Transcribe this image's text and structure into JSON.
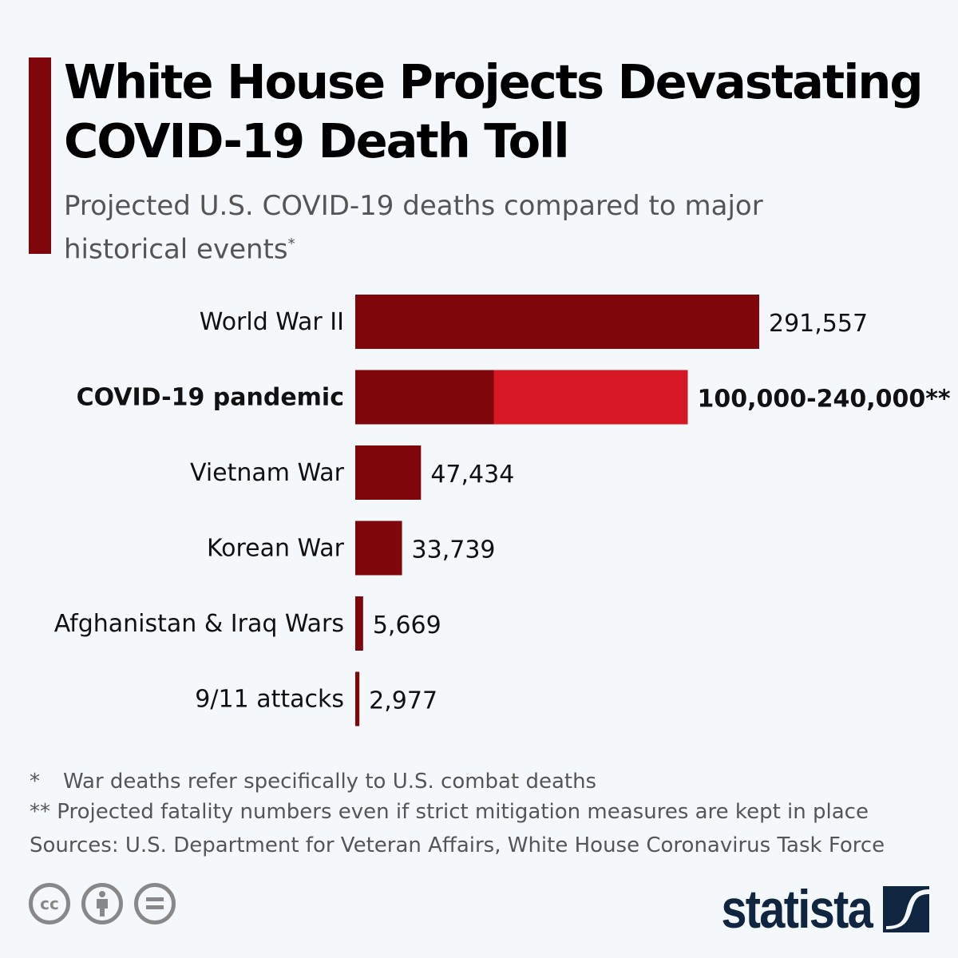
{
  "title": "White House Projects Devastating COVID-19 Death Toll",
  "subtitle": "Projected U.S. COVID-19 deaths compared to major historical events",
  "subtitle_mark": "*",
  "chart_data": {
    "type": "bar",
    "orientation": "horizontal",
    "categories": [
      "World War II",
      "COVID-19 pandemic",
      "Vietnam War",
      "Korean War",
      "Afghanistan & Iraq Wars",
      "9/11 attacks"
    ],
    "values": [
      291557,
      [
        100000,
        240000
      ],
      47434,
      33739,
      5669,
      2977
    ],
    "data_labels": [
      "291,557",
      "100,000-240,000**",
      "47,434",
      "33,739",
      "5,669",
      "2,977"
    ],
    "highlight_category": "COVID-19 pandemic",
    "colors": {
      "bar": "#7f070b",
      "range_upper": "#d51824"
    },
    "grid": false,
    "xlim": [
      0,
      291557
    ]
  },
  "notes": {
    "n1_mark": "*",
    "n1": "War deaths refer specifically to U.S. combat deaths",
    "n2": "** Projected fatality numbers even if strict mitigation measures are kept in place",
    "sources": "Sources: U.S. Department for Veteran Affairs, White House Coronavirus Task Force"
  },
  "footer": {
    "license_icons": [
      "cc-icon",
      "attribution-icon",
      "no-derivatives-icon"
    ],
    "cc_text": "cc",
    "logo": "statista"
  }
}
